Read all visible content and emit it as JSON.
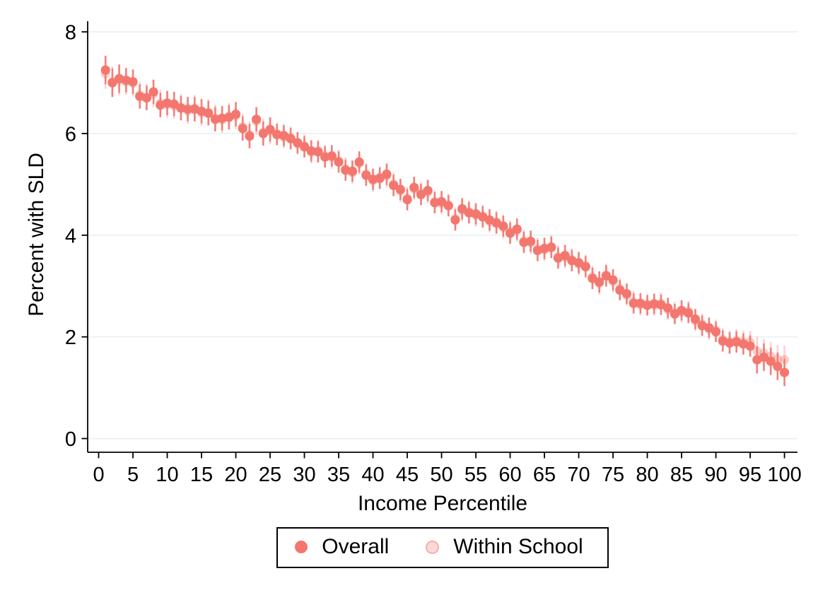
{
  "chart_data": {
    "type": "scatter",
    "title": "",
    "xlabel": "Income Percentile",
    "ylabel": "Percent with SLD",
    "xlim": [
      -1.6,
      101.9
    ],
    "ylim": [
      -0.27,
      8.21
    ],
    "x_ticks": [
      0,
      5,
      10,
      15,
      20,
      25,
      30,
      35,
      40,
      45,
      50,
      55,
      60,
      65,
      70,
      75,
      80,
      85,
      90,
      95,
      100
    ],
    "y_ticks": [
      0,
      2,
      4,
      6,
      8
    ],
    "grid": true,
    "gridline_color": "#e8f0f1",
    "axis_color": "#000000",
    "legend_position": "bottom-center",
    "x": [
      1,
      2,
      3,
      4,
      5,
      6,
      7,
      8,
      9,
      10,
      11,
      12,
      13,
      14,
      15,
      16,
      17,
      18,
      19,
      20,
      21,
      22,
      23,
      24,
      25,
      26,
      27,
      28,
      29,
      30,
      31,
      32,
      33,
      34,
      35,
      36,
      37,
      38,
      39,
      40,
      41,
      42,
      43,
      44,
      45,
      46,
      47,
      48,
      49,
      50,
      51,
      52,
      53,
      54,
      55,
      56,
      57,
      58,
      59,
      60,
      61,
      62,
      63,
      64,
      65,
      66,
      67,
      68,
      69,
      70,
      71,
      72,
      73,
      74,
      75,
      76,
      77,
      78,
      79,
      80,
      81,
      82,
      83,
      84,
      85,
      86,
      87,
      88,
      89,
      90,
      91,
      92,
      93,
      94,
      95,
      96,
      97,
      98,
      99,
      100
    ],
    "series": [
      {
        "name": "Overall",
        "color": "#f3776f",
        "opacity": 1.0,
        "values": [
          7.25,
          7.0,
          7.08,
          7.05,
          7.02,
          6.73,
          6.7,
          6.82,
          6.56,
          6.6,
          6.58,
          6.5,
          6.48,
          6.48,
          6.44,
          6.4,
          6.28,
          6.3,
          6.32,
          6.38,
          6.1,
          5.95,
          6.28,
          6.0,
          6.08,
          5.98,
          5.96,
          5.9,
          5.82,
          5.74,
          5.66,
          5.64,
          5.54,
          5.56,
          5.44,
          5.28,
          5.26,
          5.44,
          5.18,
          5.1,
          5.12,
          5.2,
          4.98,
          4.9,
          4.7,
          4.94,
          4.8,
          4.88,
          4.64,
          4.66,
          4.58,
          4.3,
          4.52,
          4.44,
          4.42,
          4.36,
          4.3,
          4.24,
          4.18,
          4.04,
          4.12,
          3.86,
          3.88,
          3.7,
          3.74,
          3.76,
          3.55,
          3.6,
          3.5,
          3.46,
          3.38,
          3.15,
          3.08,
          3.2,
          3.12,
          2.92,
          2.85,
          2.66,
          2.66,
          2.62,
          2.65,
          2.63,
          2.57,
          2.45,
          2.52,
          2.47,
          2.35,
          2.22,
          2.18,
          2.1,
          1.92,
          1.88,
          1.9,
          1.86,
          1.82,
          1.55,
          1.6,
          1.52,
          1.42,
          1.3
        ],
        "ci": [
          0.28,
          0.28,
          0.28,
          0.24,
          0.24,
          0.24,
          0.24,
          0.24,
          0.24,
          0.24,
          0.24,
          0.24,
          0.24,
          0.24,
          0.24,
          0.24,
          0.24,
          0.24,
          0.24,
          0.24,
          0.24,
          0.24,
          0.24,
          0.24,
          0.24,
          0.21,
          0.21,
          0.21,
          0.21,
          0.21,
          0.21,
          0.21,
          0.21,
          0.21,
          0.21,
          0.21,
          0.21,
          0.21,
          0.21,
          0.21,
          0.21,
          0.21,
          0.21,
          0.21,
          0.21,
          0.21,
          0.21,
          0.21,
          0.21,
          0.21,
          0.21,
          0.21,
          0.21,
          0.21,
          0.21,
          0.21,
          0.21,
          0.21,
          0.21,
          0.21,
          0.21,
          0.21,
          0.21,
          0.21,
          0.21,
          0.21,
          0.21,
          0.21,
          0.21,
          0.21,
          0.21,
          0.21,
          0.21,
          0.21,
          0.21,
          0.2,
          0.2,
          0.2,
          0.2,
          0.2,
          0.2,
          0.2,
          0.2,
          0.2,
          0.2,
          0.2,
          0.2,
          0.2,
          0.2,
          0.2,
          0.21,
          0.21,
          0.21,
          0.21,
          0.21,
          0.27,
          0.27,
          0.27,
          0.27,
          0.27
        ]
      },
      {
        "name": "Within School",
        "color": "#f3776f",
        "opacity": 0.36,
        "values": [
          7.18,
          7.02,
          7.05,
          7.02,
          6.99,
          6.76,
          6.72,
          6.78,
          6.6,
          6.57,
          6.55,
          6.52,
          6.45,
          6.5,
          6.41,
          6.42,
          6.31,
          6.27,
          6.34,
          6.35,
          6.13,
          5.98,
          6.24,
          6.03,
          6.05,
          6.0,
          5.93,
          5.92,
          5.8,
          5.76,
          5.63,
          5.66,
          5.56,
          5.53,
          5.46,
          5.31,
          5.23,
          5.41,
          5.2,
          5.07,
          5.14,
          5.17,
          5.01,
          4.87,
          4.73,
          4.91,
          4.83,
          4.85,
          4.66,
          4.63,
          4.6,
          4.33,
          4.49,
          4.46,
          4.39,
          4.38,
          4.27,
          4.26,
          4.15,
          4.07,
          4.09,
          3.89,
          3.85,
          3.73,
          3.71,
          3.78,
          3.58,
          3.57,
          3.52,
          3.43,
          3.4,
          3.18,
          3.05,
          3.22,
          3.09,
          2.95,
          2.82,
          2.69,
          2.63,
          2.64,
          2.62,
          2.66,
          2.54,
          2.48,
          2.49,
          2.5,
          2.32,
          2.25,
          2.15,
          2.13,
          1.95,
          1.9,
          1.93,
          1.9,
          1.9,
          1.72,
          1.68,
          1.62,
          1.56,
          1.55
        ],
        "ci": [
          0.3,
          0.3,
          0.3,
          0.26,
          0.26,
          0.26,
          0.26,
          0.26,
          0.26,
          0.26,
          0.26,
          0.26,
          0.26,
          0.26,
          0.26,
          0.26,
          0.26,
          0.26,
          0.26,
          0.26,
          0.26,
          0.26,
          0.26,
          0.26,
          0.26,
          0.22,
          0.22,
          0.22,
          0.22,
          0.22,
          0.22,
          0.22,
          0.22,
          0.22,
          0.22,
          0.22,
          0.22,
          0.22,
          0.22,
          0.22,
          0.22,
          0.22,
          0.22,
          0.22,
          0.22,
          0.22,
          0.22,
          0.22,
          0.22,
          0.22,
          0.22,
          0.22,
          0.22,
          0.22,
          0.22,
          0.22,
          0.22,
          0.22,
          0.22,
          0.22,
          0.22,
          0.22,
          0.22,
          0.22,
          0.22,
          0.22,
          0.22,
          0.22,
          0.22,
          0.22,
          0.22,
          0.22,
          0.22,
          0.22,
          0.22,
          0.21,
          0.21,
          0.21,
          0.21,
          0.21,
          0.21,
          0.21,
          0.21,
          0.21,
          0.21,
          0.21,
          0.21,
          0.21,
          0.21,
          0.21,
          0.22,
          0.22,
          0.22,
          0.22,
          0.22,
          0.28,
          0.28,
          0.28,
          0.28,
          0.28
        ]
      }
    ]
  },
  "legend": {
    "overall_label": "Overall",
    "within_label": "Within School"
  }
}
